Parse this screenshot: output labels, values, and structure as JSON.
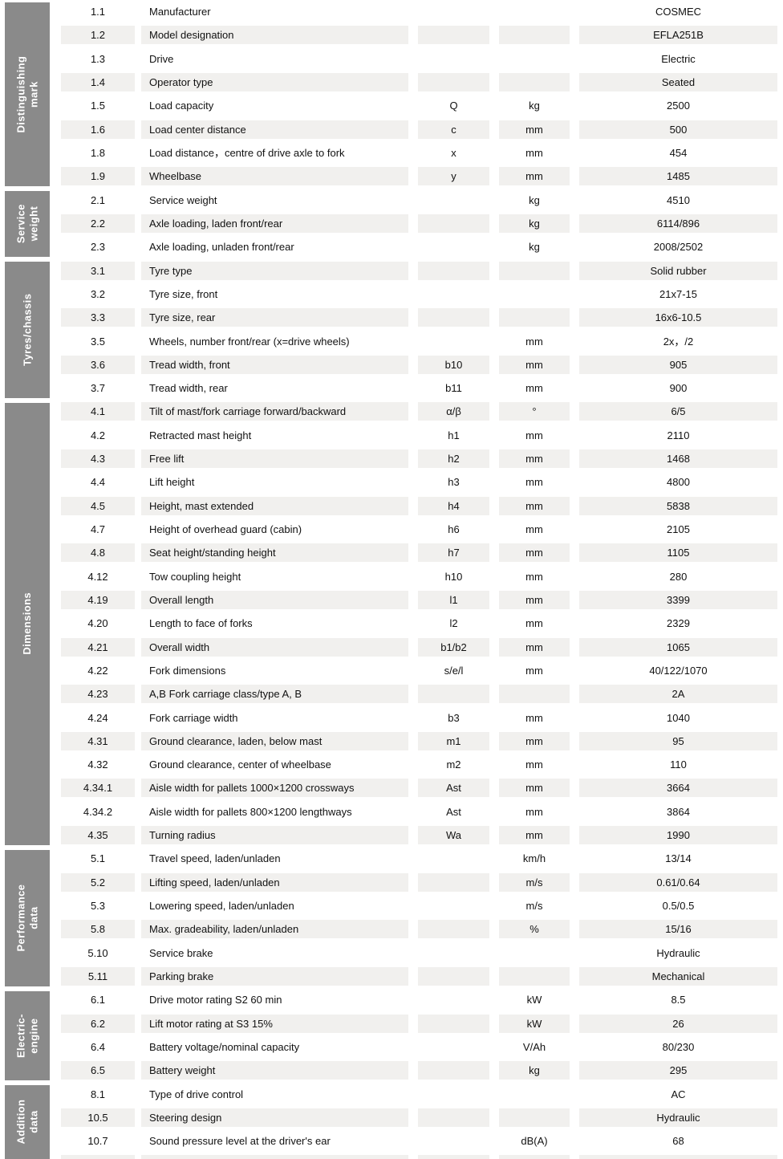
{
  "colors": {
    "sidebar": "#8a8a8a",
    "stripe": "#f1f0ee",
    "text": "#111111",
    "sidebar_text": "#ffffff"
  },
  "table": {
    "sections": [
      {
        "label": "Distinguishing mark",
        "rows": [
          {
            "no": "1.1",
            "desc": "Manufacturer",
            "sym": "",
            "unit": "",
            "value": "COSMEC"
          },
          {
            "no": "1.2",
            "desc": "Model designation",
            "sym": "",
            "unit": "",
            "value": "EFLA251B"
          },
          {
            "no": "1.3",
            "desc": "Drive",
            "sym": "",
            "unit": "",
            "value": "Electric"
          },
          {
            "no": "1.4",
            "desc": "Operator type",
            "sym": "",
            "unit": "",
            "value": "Seated"
          },
          {
            "no": "1.5",
            "desc": "Load capacity",
            "sym": "Q",
            "unit": "kg",
            "value": "2500"
          },
          {
            "no": "1.6",
            "desc": "Load center distance",
            "sym": "c",
            "unit": "mm",
            "value": "500"
          },
          {
            "no": "1.8",
            "desc": "Load distance，centre of drive axle to fork",
            "sym": "x",
            "unit": "mm",
            "value": "454"
          },
          {
            "no": "1.9",
            "desc": "Wheelbase",
            "sym": "y",
            "unit": "mm",
            "value": "1485"
          }
        ]
      },
      {
        "label": "Service weight",
        "rows": [
          {
            "no": "2.1",
            "desc": "Service weight",
            "sym": "",
            "unit": "kg",
            "value": "4510"
          },
          {
            "no": "2.2",
            "desc": "Axle loading, laden front/rear",
            "sym": "",
            "unit": "kg",
            "value": "6114/896"
          },
          {
            "no": "2.3",
            "desc": "Axle loading, unladen front/rear",
            "sym": "",
            "unit": "kg",
            "value": "2008/2502"
          }
        ]
      },
      {
        "label": "Tyres/chassis",
        "rows": [
          {
            "no": "3.1",
            "desc": "Tyre type",
            "sym": "",
            "unit": "",
            "value": "Solid rubber"
          },
          {
            "no": "3.2",
            "desc": "Tyre size, front",
            "sym": "",
            "unit": "",
            "value": "21x7-15"
          },
          {
            "no": "3.3",
            "desc": "Tyre size, rear",
            "sym": "",
            "unit": "",
            "value": "16x6-10.5"
          },
          {
            "no": "3.5",
            "desc": "Wheels, number front/rear (x=drive wheels)",
            "sym": "",
            "unit": "mm",
            "value": "2x，/2"
          },
          {
            "no": "3.6",
            "desc": "Tread width, front",
            "sym": "b10",
            "unit": "mm",
            "value": "905"
          },
          {
            "no": "3.7",
            "desc": "Tread width, rear",
            "sym": "b11",
            "unit": "mm",
            "value": "900"
          }
        ]
      },
      {
        "label": "Dimensions",
        "rows": [
          {
            "no": "4.1",
            "desc": "Tilt of mast/fork carriage forward/backward",
            "sym": "α/β",
            "unit": "°",
            "value": "6/5"
          },
          {
            "no": "4.2",
            "desc": "Retracted mast height",
            "sym": "h1",
            "unit": "mm",
            "value": "2110"
          },
          {
            "no": "4.3",
            "desc": "Free lift",
            "sym": "h2",
            "unit": "mm",
            "value": "1468"
          },
          {
            "no": "4.4",
            "desc": "Lift height",
            "sym": "h3",
            "unit": "mm",
            "value": "4800"
          },
          {
            "no": "4.5",
            "desc": "Height, mast extended",
            "sym": "h4",
            "unit": "mm",
            "value": "5838"
          },
          {
            "no": "4.7",
            "desc": "Height of overhead guard (cabin)",
            "sym": "h6",
            "unit": "mm",
            "value": "2105"
          },
          {
            "no": "4.8",
            "desc": "Seat height/standing height",
            "sym": "h7",
            "unit": "mm",
            "value": "1105"
          },
          {
            "no": "4.12",
            "desc": "Tow coupling height",
            "sym": "h10",
            "unit": "mm",
            "value": "280"
          },
          {
            "no": "4.19",
            "desc": "Overall length",
            "sym": "l1",
            "unit": "mm",
            "value": "3399"
          },
          {
            "no": "4.20",
            "desc": "Length to face of forks",
            "sym": "l2",
            "unit": "mm",
            "value": "2329"
          },
          {
            "no": "4.21",
            "desc": "Overall width",
            "sym": "b1/b2",
            "unit": "mm",
            "value": "1065"
          },
          {
            "no": "4.22",
            "desc": "Fork dimensions",
            "sym": "s/e/l",
            "unit": "mm",
            "value": "40/122/1070"
          },
          {
            "no": "4.23",
            "desc": "A,B Fork carriage class/type A, B",
            "sym": "",
            "unit": "",
            "value": "2A"
          },
          {
            "no": "4.24",
            "desc": "Fork carriage width",
            "sym": "b3",
            "unit": "mm",
            "value": "1040"
          },
          {
            "no": "4.31",
            "desc": "Ground clearance, laden, below mast",
            "sym": "m1",
            "unit": "mm",
            "value": "95"
          },
          {
            "no": "4.32",
            "desc": "Ground clearance, center of wheelbase",
            "sym": "m2",
            "unit": "mm",
            "value": "110"
          },
          {
            "no": "4.34.1",
            "desc": "Aisle width for pallets 1000×1200 crossways",
            "sym": "Ast",
            "unit": "mm",
            "value": "3664"
          },
          {
            "no": "4.34.2",
            "desc": "Aisle width for pallets 800×1200 lengthways",
            "sym": "Ast",
            "unit": "mm",
            "value": "3864"
          },
          {
            "no": "4.35",
            "desc": "Turning radius",
            "sym": "Wa",
            "unit": "mm",
            "value": "1990"
          }
        ]
      },
      {
        "label": "Performance data",
        "rows": [
          {
            "no": "5.1",
            "desc": "Travel speed, laden/unladen",
            "sym": "",
            "unit": "km/h",
            "value": "13/14"
          },
          {
            "no": "5.2",
            "desc": "Lifting speed, laden/unladen",
            "sym": "",
            "unit": "m/s",
            "value": "0.61/0.64"
          },
          {
            "no": "5.3",
            "desc": "Lowering speed, laden/unladen",
            "sym": "",
            "unit": "m/s",
            "value": "0.5/0.5"
          },
          {
            "no": "5.8",
            "desc": "Max. gradeability, laden/unladen",
            "sym": "",
            "unit": "%",
            "value": "15/16"
          },
          {
            "no": "5.10",
            "desc": "Service brake",
            "sym": "",
            "unit": "",
            "value": "Hydraulic"
          },
          {
            "no": "5.11",
            "desc": "Parking brake",
            "sym": "",
            "unit": "",
            "value": "Mechanical"
          }
        ]
      },
      {
        "label": "Electric-engine",
        "rows": [
          {
            "no": "6.1",
            "desc": "Drive motor rating S2 60 min",
            "sym": "",
            "unit": "kW",
            "value": "8.5"
          },
          {
            "no": "6.2",
            "desc": "Lift motor rating at S3 15%",
            "sym": "",
            "unit": "kW",
            "value": "26"
          },
          {
            "no": "6.4",
            "desc": "Battery voltage/nominal capacity",
            "sym": "",
            "unit": "V/Ah",
            "value": "80/230"
          },
          {
            "no": "6.5",
            "desc": "Battery weight",
            "sym": "",
            "unit": "kg",
            "value": "295"
          }
        ]
      },
      {
        "label": "Addition data",
        "rows": [
          {
            "no": "8.1",
            "desc": "Type of drive control",
            "sym": "",
            "unit": "",
            "value": "AC"
          },
          {
            "no": "10.5",
            "desc": "Steering design",
            "sym": "",
            "unit": "",
            "value": "Hydraulic"
          },
          {
            "no": "10.7",
            "desc": "Sound pressure level at the driver's ear",
            "sym": "",
            "unit": "dB(A)",
            "value": "68"
          }
        ]
      }
    ]
  }
}
